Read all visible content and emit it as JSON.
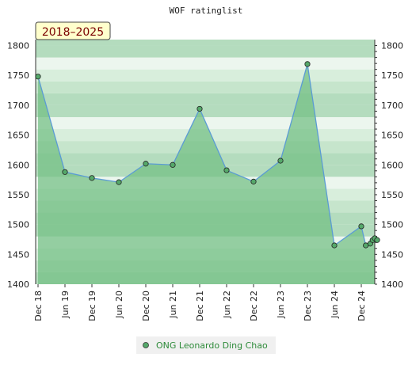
{
  "chart_data": {
    "type": "line",
    "title": "WOF ratinglist",
    "period_label": "2018–2025",
    "xlabel": "",
    "ylabel": "",
    "ylim": [
      1400,
      1810
    ],
    "y_ticks": [
      1400,
      1450,
      1500,
      1550,
      1600,
      1650,
      1700,
      1750,
      1800
    ],
    "x_tick_labels": [
      "Dec 18",
      "Jun 19",
      "Dec 19",
      "Jun 20",
      "Dec 20",
      "Jun 21",
      "Dec 21",
      "Jun 22",
      "Dec 22",
      "Jun 23",
      "Dec 23",
      "Jun 24",
      "Dec 24"
    ],
    "x_start": "2018-12",
    "x_end": "2025-03",
    "grid": true,
    "legend_position": "bottom-center",
    "colors": {
      "line": "#5b9bd5",
      "marker": "#55a86a",
      "fill": "#6fbd80",
      "legend_text": "#2e8b3a",
      "period_bg": "#ffffcc",
      "period_text": "#7a0000"
    },
    "series": [
      {
        "name": "ONG Leonardo Ding Chao",
        "points": [
          {
            "x": "2018-12",
            "y": 1748
          },
          {
            "x": "2019-06",
            "y": 1588
          },
          {
            "x": "2019-12",
            "y": 1578
          },
          {
            "x": "2020-06",
            "y": 1571
          },
          {
            "x": "2020-12",
            "y": 1602
          },
          {
            "x": "2021-06",
            "y": 1600
          },
          {
            "x": "2021-12",
            "y": 1694
          },
          {
            "x": "2022-06",
            "y": 1591
          },
          {
            "x": "2022-12",
            "y": 1572
          },
          {
            "x": "2023-06",
            "y": 1607
          },
          {
            "x": "2023-12",
            "y": 1769
          },
          {
            "x": "2024-06",
            "y": 1465
          },
          {
            "x": "2024-12",
            "y": 1497
          },
          {
            "x": "2025-01",
            "y": 1465
          },
          {
            "x": "2025-02",
            "y": 1468
          },
          {
            "x": "2025-02",
            "y": 1474
          },
          {
            "x": "2025-03",
            "y": 1477
          },
          {
            "x": "2025-03",
            "y": 1474
          }
        ]
      }
    ]
  }
}
